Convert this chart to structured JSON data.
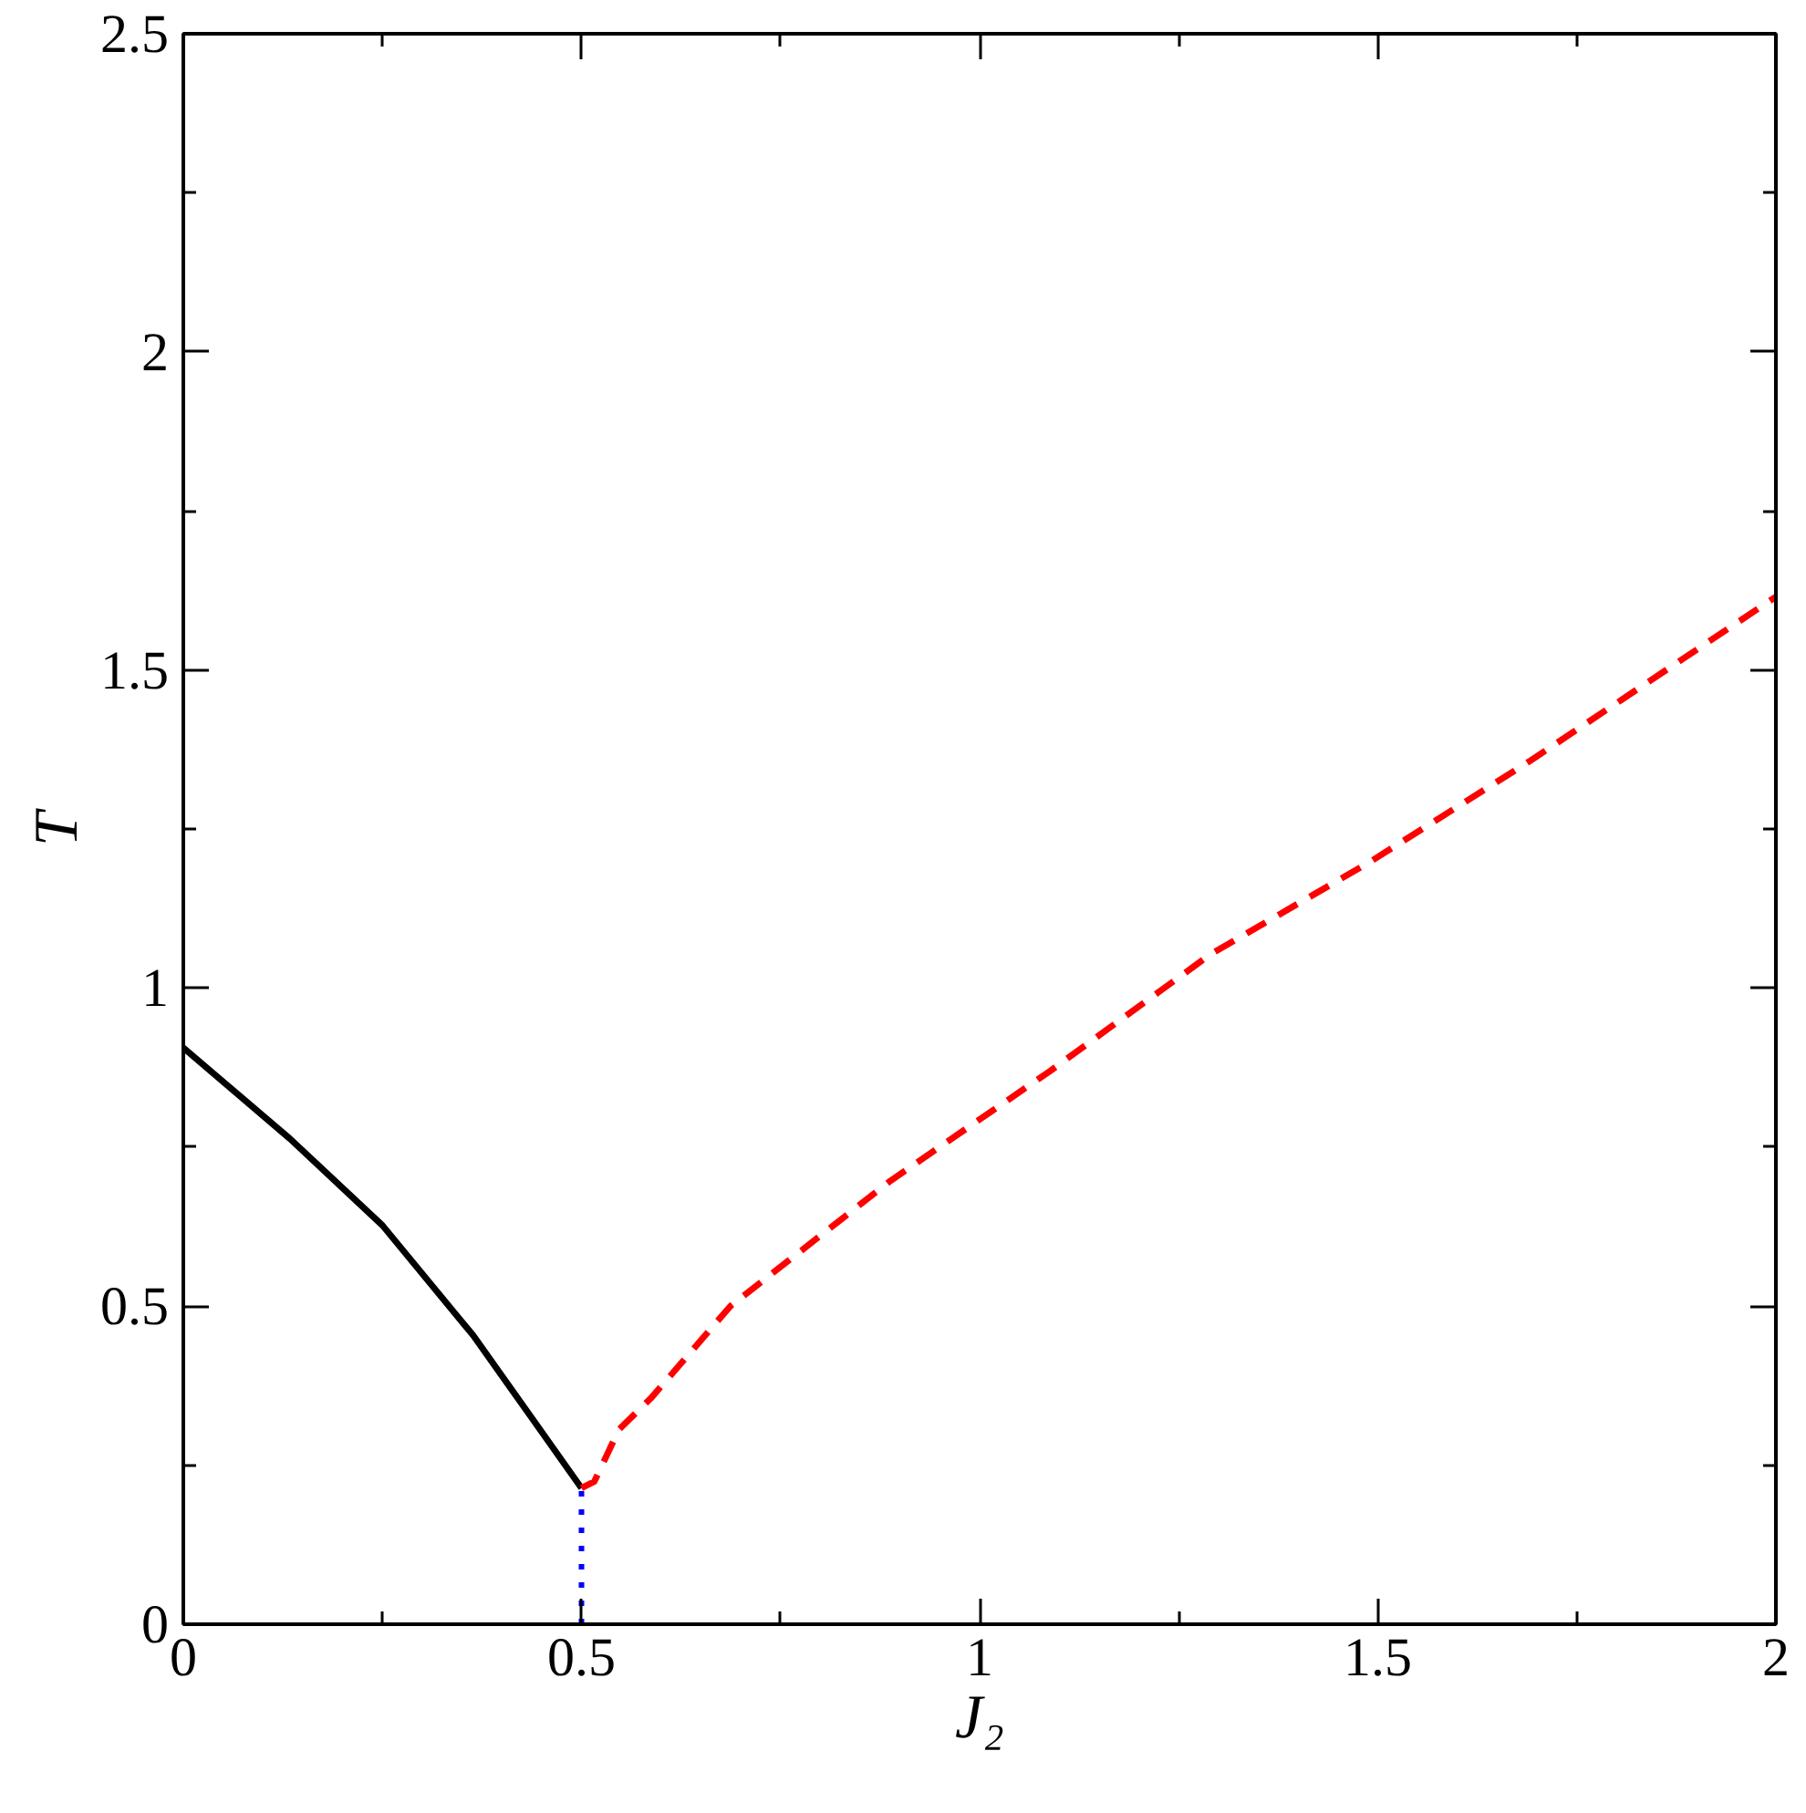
{
  "chart_data": {
    "type": "line",
    "xlabel": "J₂",
    "ylabel": "T",
    "xlim": [
      0,
      2
    ],
    "ylim": [
      0,
      2.5
    ],
    "xticks": [
      0,
      0.5,
      1,
      1.5,
      2
    ],
    "yticks": [
      0,
      0.5,
      1,
      1.5,
      2,
      2.5
    ],
    "grid": false,
    "marker": "none",
    "series": [
      {
        "color": "#000000",
        "line_style": "solid",
        "x": [
          0,
          0.134,
          0.25,
          0.364,
          0.44,
          0.5
        ],
        "values": [
          0.906,
          0.763,
          0.627,
          0.454,
          0.32,
          0.214
        ]
      },
      {
        "color": "#ff0000",
        "line_style": "dashed",
        "x": [
          0.5,
          0.516,
          0.547,
          0.587,
          0.687,
          0.888,
          1.089,
          1.29,
          1.49,
          1.69,
          2
        ],
        "values": [
          0.214,
          0.224,
          0.306,
          0.355,
          0.5,
          0.697,
          0.87,
          1.053,
          1.198,
          1.356,
          1.615
        ]
      },
      {
        "color": "#0000ff",
        "line_style": "dotted",
        "x": [
          0.5,
          0.5
        ],
        "values": [
          0,
          0.214
        ]
      }
    ]
  }
}
